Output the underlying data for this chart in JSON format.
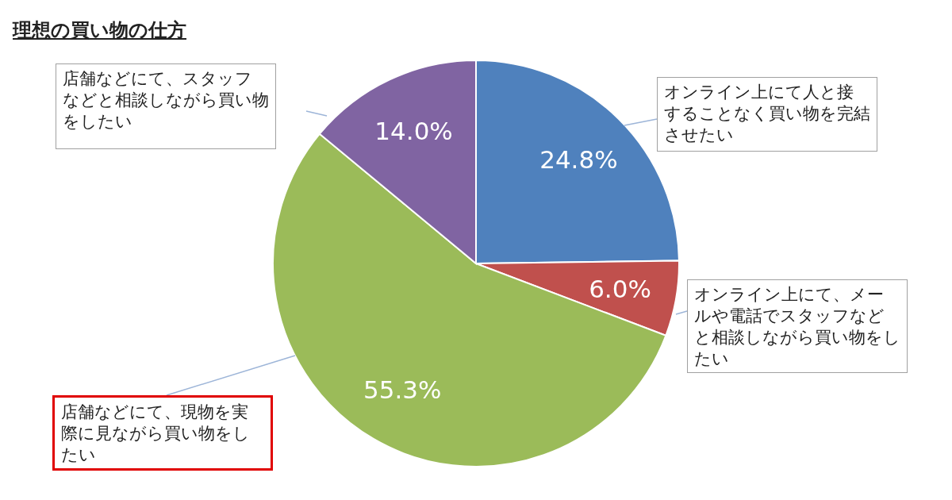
{
  "chart_data": {
    "type": "pie",
    "title": "理想の買い物の仕方",
    "categories": [
      "オンライン上にて人と接することなく買い物を完結させたい",
      "オンライン上にて、メールや電話でスタッフなどと相談しながら買い物をしたい",
      "店舗などにて、現物を実際に見ながら買い物をしたい",
      "店舗などにて、スタッフなどと相談しながら買い物をしたい"
    ],
    "values": [
      24.8,
      6.0,
      55.3,
      14.0
    ],
    "value_labels": [
      "24.8%",
      "6.0%",
      "55.3%",
      "14.0%"
    ],
    "colors": [
      "#4f81bd",
      "#c0504d",
      "#9bbb59",
      "#8064a2"
    ]
  }
}
